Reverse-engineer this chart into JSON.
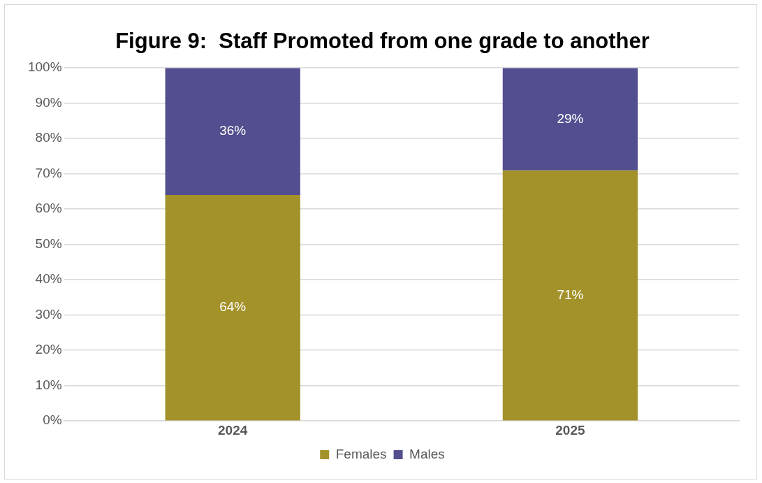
{
  "chart_data": {
    "type": "bar",
    "title": "Figure 9:  Staff Promoted from one grade to another",
    "categories": [
      "2024",
      "2025"
    ],
    "stacked": true,
    "series": [
      {
        "name": "Females",
        "color": "#a3912a",
        "values": [
          64,
          71
        ],
        "value_labels": [
          "64%",
          "71%"
        ]
      },
      {
        "name": "Males",
        "color": "#524e8f",
        "values": [
          36,
          29
        ],
        "value_labels": [
          "36%",
          "29%"
        ]
      }
    ],
    "ylim": [
      0,
      100
    ],
    "yticks": [
      {
        "value": 0,
        "label": "0%"
      },
      {
        "value": 10,
        "label": "10%"
      },
      {
        "value": 20,
        "label": "20%"
      },
      {
        "value": 30,
        "label": "30%"
      },
      {
        "value": 40,
        "label": "40%"
      },
      {
        "value": 50,
        "label": "50%"
      },
      {
        "value": 60,
        "label": "60%"
      },
      {
        "value": 70,
        "label": "70%"
      },
      {
        "value": 80,
        "label": "80%"
      },
      {
        "value": 90,
        "label": "90%"
      },
      {
        "value": 100,
        "label": "100%"
      }
    ],
    "grid": "y",
    "legend": "bottom"
  }
}
